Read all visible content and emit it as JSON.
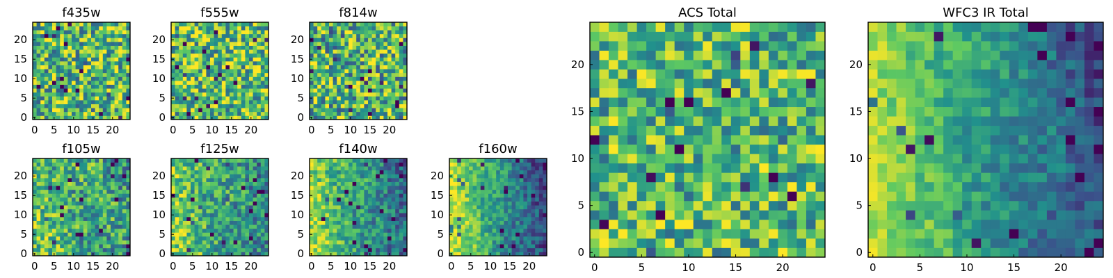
{
  "figure": {
    "colormap": "viridis",
    "colormap_stops": [
      "#440154",
      "#3b528b",
      "#21918c",
      "#5ec962",
      "#fde725"
    ]
  },
  "chart_data": [
    {
      "type": "heatmap",
      "title": "f435w",
      "grid": [
        25,
        25
      ],
      "xlim": [
        0,
        25
      ],
      "ylim": [
        0,
        25
      ],
      "xticks": [
        0,
        5,
        10,
        15,
        20
      ],
      "yticks": [
        0,
        5,
        10,
        15,
        20
      ],
      "pattern": "uniform-noise",
      "value_range": [
        0,
        1
      ],
      "bias": 0.68,
      "gradient": 0,
      "noise": 0.38,
      "seed": 11
    },
    {
      "type": "heatmap",
      "title": "f555w",
      "grid": [
        25,
        25
      ],
      "xlim": [
        0,
        25
      ],
      "ylim": [
        0,
        25
      ],
      "xticks": [
        0,
        5,
        10,
        15,
        20
      ],
      "yticks": [
        0,
        5,
        10,
        15,
        20
      ],
      "pattern": "uniform-noise",
      "value_range": [
        0,
        1
      ],
      "bias": 0.7,
      "gradient": 0,
      "noise": 0.38,
      "seed": 23
    },
    {
      "type": "heatmap",
      "title": "f814w",
      "grid": [
        25,
        25
      ],
      "xlim": [
        0,
        25
      ],
      "ylim": [
        0,
        25
      ],
      "xticks": [
        0,
        5,
        10,
        15,
        20
      ],
      "yticks": [
        0,
        5,
        10,
        15,
        20
      ],
      "pattern": "uniform-noise",
      "value_range": [
        0,
        1
      ],
      "bias": 0.66,
      "gradient": 0,
      "noise": 0.4,
      "seed": 37
    },
    {
      "type": "heatmap",
      "title": "f105w",
      "grid": [
        25,
        25
      ],
      "xlim": [
        0,
        25
      ],
      "ylim": [
        0,
        25
      ],
      "xticks": [
        0,
        5,
        10,
        15,
        20
      ],
      "yticks": [
        0,
        5,
        10,
        15,
        20
      ],
      "pattern": "left-bright-gradient",
      "value_range": [
        0,
        1
      ],
      "bias": 0.62,
      "gradient": 0.2,
      "noise": 0.3,
      "seed": 41
    },
    {
      "type": "heatmap",
      "title": "f125w",
      "grid": [
        25,
        25
      ],
      "xlim": [
        0,
        25
      ],
      "ylim": [
        0,
        25
      ],
      "xticks": [
        0,
        5,
        10,
        15,
        20
      ],
      "yticks": [
        0,
        5,
        10,
        15,
        20
      ],
      "pattern": "left-bright-gradient",
      "value_range": [
        0,
        1
      ],
      "bias": 0.6,
      "gradient": 0.35,
      "noise": 0.26,
      "seed": 53
    },
    {
      "type": "heatmap",
      "title": "f140w",
      "grid": [
        25,
        25
      ],
      "xlim": [
        0,
        25
      ],
      "ylim": [
        0,
        25
      ],
      "xticks": [
        0,
        5,
        10,
        15,
        20
      ],
      "yticks": [
        0,
        5,
        10,
        15,
        20
      ],
      "pattern": "left-bright-gradient",
      "value_range": [
        0,
        1
      ],
      "bias": 0.58,
      "gradient": 0.5,
      "noise": 0.22,
      "seed": 67
    },
    {
      "type": "heatmap",
      "title": "f160w",
      "grid": [
        25,
        25
      ],
      "xlim": [
        0,
        25
      ],
      "ylim": [
        0,
        25
      ],
      "xticks": [
        0,
        5,
        10,
        15,
        20
      ],
      "yticks": [
        0,
        5,
        10,
        15,
        20
      ],
      "pattern": "left-bright-gradient",
      "value_range": [
        0,
        1
      ],
      "bias": 0.55,
      "gradient": 0.7,
      "noise": 0.18,
      "seed": 79
    },
    {
      "type": "heatmap",
      "title": "ACS Total",
      "grid": [
        25,
        25
      ],
      "xlim": [
        0,
        25
      ],
      "ylim": [
        0,
        25
      ],
      "xticks": [
        0,
        5,
        10,
        15,
        20
      ],
      "yticks": [
        0,
        5,
        10,
        15,
        20
      ],
      "pattern": "uniform-noise",
      "value_range": [
        0,
        1
      ],
      "bias": 0.68,
      "gradient": 0,
      "noise": 0.33,
      "seed": 97
    },
    {
      "type": "heatmap",
      "title": "WFC3 IR Total",
      "grid": [
        25,
        25
      ],
      "xlim": [
        0,
        25
      ],
      "ylim": [
        0,
        25
      ],
      "xticks": [
        0,
        5,
        10,
        15,
        20
      ],
      "yticks": [
        0,
        5,
        10,
        15,
        20
      ],
      "pattern": "left-bright-gradient",
      "value_range": [
        0,
        1
      ],
      "bias": 0.55,
      "gradient": 0.62,
      "noise": 0.15,
      "seed": 109
    }
  ]
}
